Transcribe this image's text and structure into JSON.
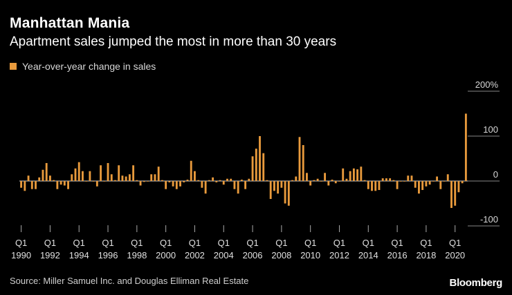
{
  "chart_data": {
    "type": "bar",
    "title": "Manhattan Mania",
    "subtitle": "Apartment sales jumped the most in more than 30 years",
    "legend": "Year-over-year change in sales",
    "xlabel": "",
    "ylabel": "",
    "ylim": [
      -100,
      200
    ],
    "yticks": [
      {
        "value": 200,
        "label": "200%"
      },
      {
        "value": 100,
        "label": "100"
      },
      {
        "value": 0,
        "label": "0"
      },
      {
        "value": -100,
        "label": "-100"
      }
    ],
    "x_start": "1990 Q1",
    "x_tick_quarter": "Q1",
    "x_tick_years": [
      "1990",
      "1992",
      "1994",
      "1996",
      "1998",
      "2000",
      "2002",
      "2004",
      "2006",
      "2008",
      "2010",
      "2012",
      "2014",
      "2016",
      "2018",
      "2020"
    ],
    "values": [
      -15,
      -22,
      12,
      -18,
      -18,
      8,
      25,
      40,
      12,
      2,
      -18,
      -8,
      -10,
      -18,
      15,
      28,
      42,
      22,
      0,
      22,
      0,
      -12,
      35,
      0,
      40,
      15,
      2,
      35,
      12,
      10,
      15,
      35,
      2,
      -10,
      -2,
      0,
      15,
      15,
      32,
      2,
      -18,
      -3,
      -12,
      -18,
      -12,
      -3,
      3,
      45,
      22,
      2,
      -15,
      -28,
      2,
      8,
      -3,
      2,
      -8,
      5,
      5,
      -18,
      -28,
      3,
      -18,
      5,
      55,
      72,
      100,
      62,
      2,
      -40,
      -22,
      -28,
      -15,
      -50,
      -55,
      2,
      10,
      98,
      80,
      18,
      -10,
      2,
      5,
      0,
      18,
      -10,
      3,
      -5,
      0,
      28,
      5,
      22,
      28,
      26,
      32,
      2,
      -18,
      -22,
      -22,
      -20,
      6,
      6,
      6,
      2,
      -18,
      0,
      0,
      12,
      12,
      -15,
      -28,
      -20,
      -12,
      -8,
      0,
      10,
      -18,
      0,
      15,
      -60,
      -55,
      -25,
      -5,
      150
    ],
    "bar_color": "#E89A3C",
    "source": "Source: Miller Samuel Inc. and Douglas Elliman Real Estate",
    "brand": "Bloomberg"
  }
}
